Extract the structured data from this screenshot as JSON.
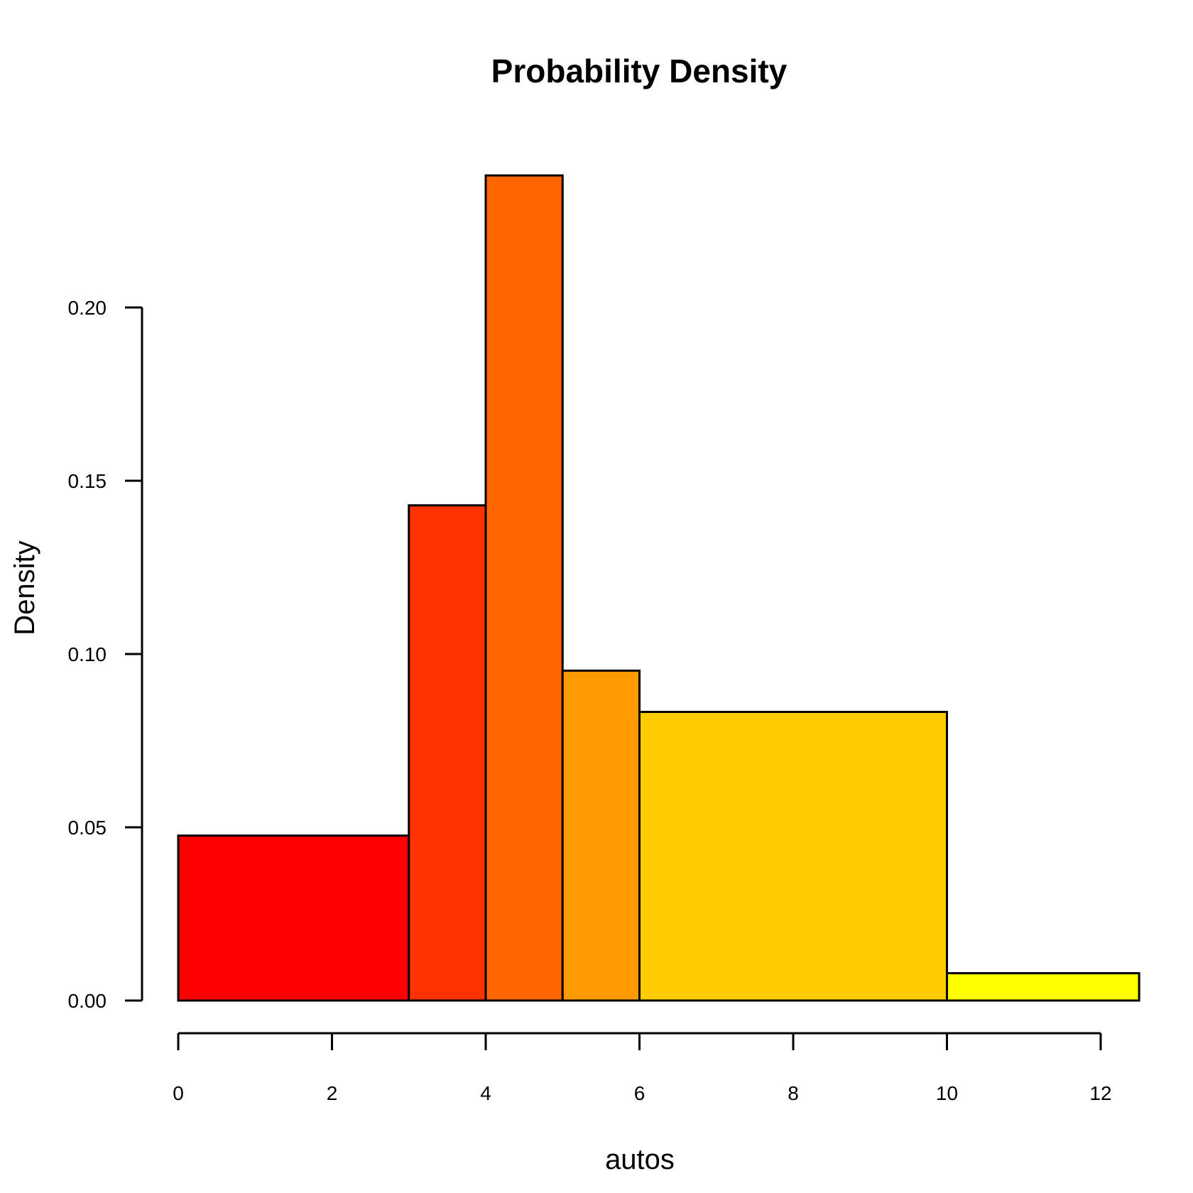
{
  "chart_data": {
    "type": "bar",
    "subtype": "histogram",
    "title": "Probability Density",
    "xlabel": "autos",
    "ylabel": "Density",
    "xlim": [
      0,
      12.5
    ],
    "ylim": [
      0,
      0.24
    ],
    "x_ticks": [
      0,
      2,
      4,
      6,
      8,
      10,
      12
    ],
    "x_tick_labels": [
      "0",
      "2",
      "4",
      "6",
      "8",
      "10",
      "12"
    ],
    "y_ticks": [
      0,
      0.05,
      0.1,
      0.15,
      0.2
    ],
    "y_tick_labels": [
      "0.00",
      "0.05",
      "0.10",
      "0.15",
      "0.20"
    ],
    "grid": false,
    "bins": [
      {
        "x0": 0,
        "x1": 3,
        "density": 0.0476,
        "color": "#FF0000"
      },
      {
        "x0": 3,
        "x1": 4,
        "density": 0.1429,
        "color": "#FF3300"
      },
      {
        "x0": 4,
        "x1": 5,
        "density": 0.2381,
        "color": "#FF6600"
      },
      {
        "x0": 5,
        "x1": 6,
        "density": 0.0952,
        "color": "#FF9900"
      },
      {
        "x0": 6,
        "x1": 10,
        "density": 0.0833,
        "color": "#FFCC00"
      },
      {
        "x0": 10,
        "x1": 12.5,
        "density": 0.0079,
        "color": "#FFFF00"
      }
    ]
  }
}
